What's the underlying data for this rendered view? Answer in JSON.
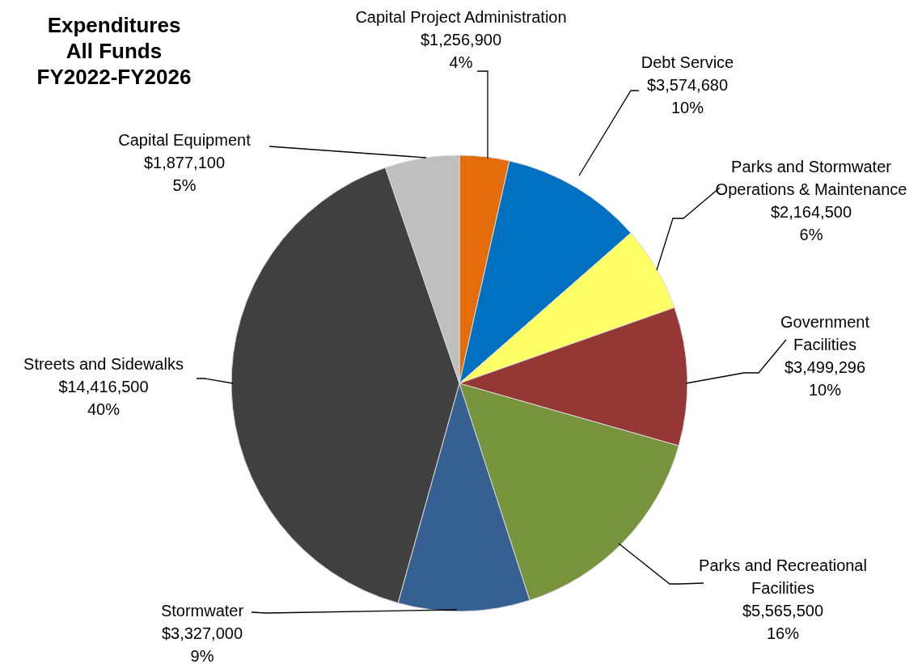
{
  "chart_data": {
    "type": "pie",
    "title": "Expenditures All Funds FY2022-FY2026",
    "categories": [
      "Capital Project Administration",
      "Debt Service",
      "Parks and Stormwater Operations & Maintenance",
      "Government Facilities",
      "Parks and Recreational Facilities",
      "Stormwater",
      "Streets and Sidewalks",
      "Capital Equipment"
    ],
    "values": [
      1256900,
      3574680,
      2164500,
      3499296,
      5565500,
      3327000,
      14416500,
      1877100
    ],
    "colors": [
      "#e46c0a",
      "#0070c0",
      "#ffff66",
      "#953735",
      "#77933c",
      "#376092",
      "#404040",
      "#bfbfbf"
    ],
    "value_labels": [
      "$1,256,900\n4%",
      "$3,574,680\n10%",
      "$2,164,500\n6%",
      "$3,499,296\n10%",
      "$5,565,500\n16%",
      "$3,327,000\n9%",
      "$14,416,500\n40%",
      "$1,877,100\n5%"
    ]
  }
}
